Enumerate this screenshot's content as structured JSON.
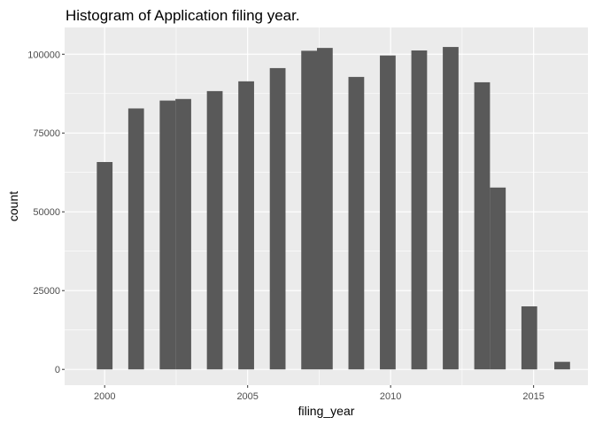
{
  "chart_data": {
    "type": "bar",
    "title": "Histogram of Application filing year.",
    "xlabel": "filing_year",
    "ylabel": "count",
    "xlim": [
      1998.6,
      2016.9
    ],
    "ylim": [
      -5000,
      108500
    ],
    "xticks": [
      2000,
      2005,
      2010,
      2015
    ],
    "yticks": [
      0,
      25000,
      50000,
      75000,
      100000
    ],
    "bin_width": 0.55,
    "bins": [
      {
        "x": 2000.0,
        "value": 65800
      },
      {
        "x": 2001.1,
        "value": 82800
      },
      {
        "x": 2002.2,
        "value": 85300
      },
      {
        "x": 2002.75,
        "value": 85800
      },
      {
        "x": 2003.85,
        "value": 88300
      },
      {
        "x": 2004.95,
        "value": 91400
      },
      {
        "x": 2006.05,
        "value": 95600
      },
      {
        "x": 2007.15,
        "value": 101100
      },
      {
        "x": 2007.7,
        "value": 102000
      },
      {
        "x": 2008.8,
        "value": 92800
      },
      {
        "x": 2009.9,
        "value": 99600
      },
      {
        "x": 2011.0,
        "value": 101200
      },
      {
        "x": 2012.1,
        "value": 102300
      },
      {
        "x": 2013.2,
        "value": 91100
      },
      {
        "x": 2013.75,
        "value": 57700
      },
      {
        "x": 2014.85,
        "value": 20000
      },
      {
        "x": 2016.0,
        "value": 2400
      }
    ],
    "grid": true,
    "legend": "none",
    "colors": {
      "panel": "#ebebeb",
      "grid": "#ffffff",
      "bar": "#595959"
    }
  }
}
